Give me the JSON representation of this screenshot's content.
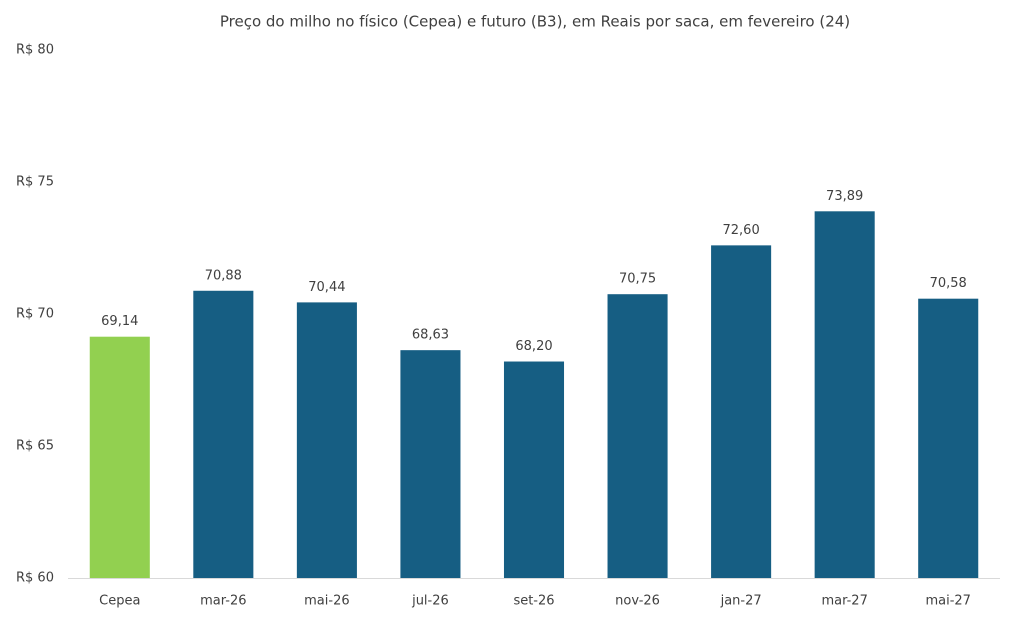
{
  "chart_data": {
    "type": "bar",
    "title": "Preço do milho no físico (Cepea) e futuro (B3), em Reais por saca, em fevereiro (24)",
    "categories": [
      "Cepea",
      "mar-26",
      "mai-26",
      "jul-26",
      "set-26",
      "nov-26",
      "jan-27",
      "mar-27",
      "mai-27"
    ],
    "values": [
      69.14,
      70.88,
      70.44,
      68.63,
      68.2,
      70.75,
      72.6,
      73.89,
      70.58
    ],
    "value_labels": [
      "69,14",
      "70,88",
      "70,44",
      "68,63",
      "68,20",
      "70,75",
      "72,60",
      "73,89",
      "70,58"
    ],
    "colors": [
      "#92d050",
      "#165e83",
      "#165e83",
      "#165e83",
      "#165e83",
      "#165e83",
      "#165e83",
      "#165e83",
      "#165e83"
    ],
    "ylim": [
      60,
      80
    ],
    "yticks": [
      {
        "value": 60,
        "label": "R$ 60"
      },
      {
        "value": 65,
        "label": "R$ 65"
      },
      {
        "value": 70,
        "label": "R$ 70"
      },
      {
        "value": 75,
        "label": "R$ 75"
      },
      {
        "value": 80,
        "label": "R$ 80"
      }
    ],
    "grid": false
  }
}
